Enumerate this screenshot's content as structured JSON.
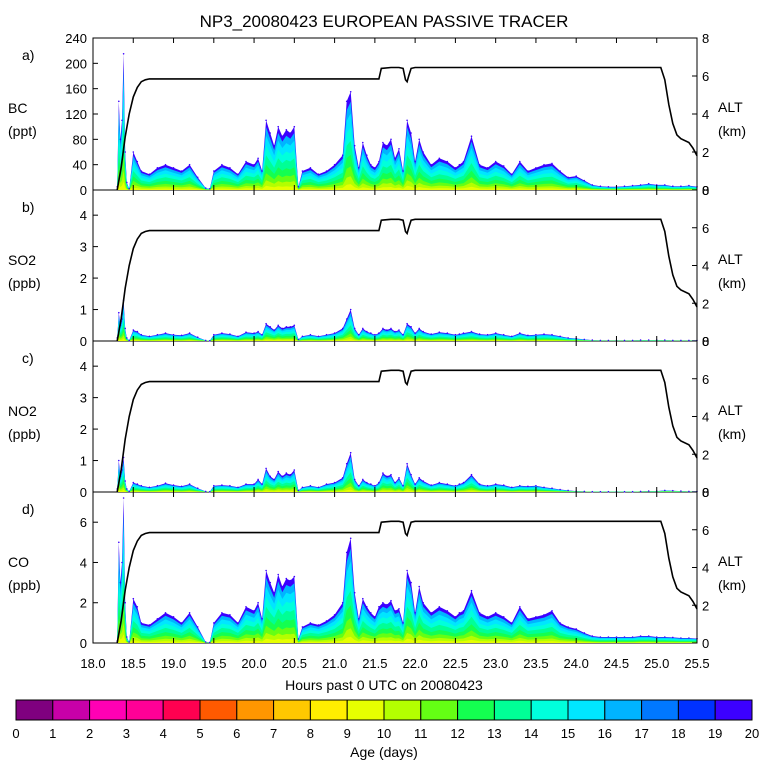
{
  "chart_data": {
    "type": "area",
    "title": "NP3_20080423 EUROPEAN PASSIVE TRACER",
    "xlabel": "Hours past 0 UTC on 20080423",
    "xlim": [
      18.0,
      25.5
    ],
    "xticks": [
      "18.0",
      "18.5",
      "19.0",
      "19.5",
      "20.0",
      "20.5",
      "21.0",
      "21.5",
      "22.0",
      "22.5",
      "23.0",
      "23.5",
      "24.0",
      "24.5",
      "25.0",
      "25.5"
    ],
    "x": [
      18.3,
      18.32,
      18.34,
      18.36,
      18.38,
      18.4,
      18.42,
      18.45,
      18.5,
      18.55,
      18.6,
      18.7,
      18.8,
      18.9,
      19.0,
      19.1,
      19.2,
      19.3,
      19.4,
      19.45,
      19.5,
      19.6,
      19.7,
      19.8,
      19.9,
      20.0,
      20.05,
      20.1,
      20.15,
      20.2,
      20.25,
      20.3,
      20.35,
      20.4,
      20.45,
      20.5,
      20.55,
      20.6,
      20.7,
      20.8,
      20.9,
      21.0,
      21.1,
      21.15,
      21.2,
      21.25,
      21.3,
      21.35,
      21.4,
      21.45,
      21.5,
      21.55,
      21.6,
      21.65,
      21.7,
      21.75,
      21.8,
      21.85,
      21.9,
      21.95,
      22.0,
      22.05,
      22.1,
      22.2,
      22.3,
      22.4,
      22.5,
      22.55,
      22.6,
      22.7,
      22.8,
      22.9,
      23.0,
      23.1,
      23.2,
      23.3,
      23.4,
      23.5,
      23.6,
      23.7,
      23.8,
      23.9,
      24.0,
      24.1,
      24.2,
      24.3,
      24.4,
      24.5,
      24.6,
      24.7,
      24.8,
      24.9,
      25.0,
      25.1,
      25.2,
      25.3,
      25.4,
      25.5
    ],
    "panels": [
      {
        "label": "a)",
        "species": "BC",
        "unit": "(ppt)",
        "ylim": [
          0,
          240
        ],
        "yticks": [
          "0",
          "40",
          "80",
          "120",
          "160",
          "200",
          "240"
        ],
        "values": [
          5,
          140,
          80,
          110,
          215,
          60,
          12,
          2,
          60,
          45,
          30,
          25,
          35,
          40,
          35,
          30,
          40,
          20,
          3,
          2,
          30,
          40,
          35,
          25,
          45,
          40,
          50,
          30,
          110,
          90,
          70,
          100,
          85,
          95,
          90,
          100,
          5,
          30,
          35,
          25,
          30,
          40,
          55,
          140,
          155,
          70,
          35,
          75,
          55,
          40,
          35,
          45,
          75,
          70,
          80,
          50,
          65,
          30,
          110,
          90,
          45,
          80,
          60,
          40,
          50,
          45,
          35,
          40,
          45,
          85,
          40,
          35,
          45,
          38,
          25,
          45,
          30,
          35,
          40,
          42,
          30,
          20,
          22,
          15,
          8,
          6,
          5,
          5,
          6,
          7,
          8,
          10,
          8,
          8,
          6,
          6,
          7,
          5
        ]
      },
      {
        "label": "b)",
        "species": "SO2",
        "unit": "(ppb)",
        "ylim": [
          0,
          4.8
        ],
        "yticks": [
          "0",
          "1",
          "2",
          "3",
          "4"
        ],
        "values": [
          0.1,
          0.9,
          0.5,
          0.7,
          1.3,
          0.4,
          0.1,
          0.02,
          0.35,
          0.3,
          0.2,
          0.15,
          0.2,
          0.25,
          0.2,
          0.18,
          0.25,
          0.12,
          0.02,
          0.01,
          0.2,
          0.25,
          0.22,
          0.15,
          0.28,
          0.25,
          0.3,
          0.2,
          0.55,
          0.45,
          0.35,
          0.5,
          0.4,
          0.45,
          0.45,
          0.5,
          0.05,
          0.15,
          0.2,
          0.15,
          0.2,
          0.25,
          0.4,
          0.7,
          1.0,
          0.4,
          0.2,
          0.4,
          0.3,
          0.25,
          0.2,
          0.25,
          0.4,
          0.35,
          0.4,
          0.3,
          0.35,
          0.2,
          0.55,
          0.45,
          0.25,
          0.4,
          0.3,
          0.22,
          0.28,
          0.25,
          0.2,
          0.22,
          0.25,
          0.3,
          0.22,
          0.2,
          0.25,
          0.2,
          0.15,
          0.25,
          0.18,
          0.2,
          0.22,
          0.2,
          0.15,
          0.1,
          0.08,
          0.05,
          0.03,
          0.02,
          0.02,
          0.02,
          0.02,
          0.02,
          0.03,
          0.03,
          0.03,
          0.03,
          0.02,
          0.02,
          0.02,
          0.02
        ]
      },
      {
        "label": "c)",
        "species": "NO2",
        "unit": "(ppb)",
        "ylim": [
          0,
          4.8
        ],
        "yticks": [
          "0",
          "1",
          "2",
          "3",
          "4"
        ],
        "values": [
          0.1,
          1.0,
          0.5,
          0.7,
          1.1,
          0.35,
          0.1,
          0.02,
          0.3,
          0.25,
          0.2,
          0.15,
          0.2,
          0.28,
          0.22,
          0.18,
          0.25,
          0.12,
          0.02,
          0.01,
          0.2,
          0.22,
          0.2,
          0.15,
          0.25,
          0.25,
          0.4,
          0.25,
          0.75,
          0.5,
          0.4,
          0.65,
          0.5,
          0.6,
          0.55,
          0.7,
          0.05,
          0.15,
          0.2,
          0.15,
          0.25,
          0.3,
          0.45,
          0.9,
          1.25,
          0.4,
          0.2,
          0.4,
          0.3,
          0.25,
          0.2,
          0.3,
          0.6,
          0.5,
          0.55,
          0.3,
          0.45,
          0.2,
          0.9,
          0.55,
          0.25,
          0.45,
          0.35,
          0.22,
          0.3,
          0.25,
          0.2,
          0.25,
          0.3,
          0.55,
          0.25,
          0.2,
          0.25,
          0.22,
          0.15,
          0.2,
          0.18,
          0.2,
          0.15,
          0.12,
          0.08,
          0.05,
          0.03,
          0.02,
          0.01,
          0.01,
          0.01,
          0.01,
          0.01,
          0.01,
          0.02,
          0.03,
          0.03,
          0.05,
          0.04,
          0.03,
          0.02,
          0.02
        ]
      },
      {
        "label": "d)",
        "species": "CO",
        "unit": "(ppb)",
        "ylim": [
          0,
          7.5
        ],
        "yticks": [
          "0",
          "2",
          "4",
          "6"
        ],
        "values": [
          0.1,
          5.0,
          3.0,
          4.0,
          7.2,
          2.0,
          0.3,
          0.05,
          2.2,
          1.8,
          1.0,
          0.9,
          1.2,
          1.5,
          1.3,
          1.0,
          1.5,
          0.8,
          0.05,
          0.03,
          1.0,
          1.5,
          1.4,
          1.0,
          1.8,
          1.6,
          2.0,
          1.2,
          3.6,
          3.0,
          2.5,
          3.4,
          2.8,
          3.2,
          3.1,
          3.3,
          0.2,
          0.8,
          1.0,
          0.9,
          1.1,
          1.4,
          2.0,
          4.5,
          5.2,
          2.5,
          1.2,
          2.2,
          1.8,
          1.5,
          1.3,
          1.8,
          2.0,
          1.9,
          2.1,
          1.6,
          1.7,
          1.0,
          3.6,
          3.0,
          1.5,
          2.8,
          2.0,
          1.5,
          1.8,
          1.6,
          1.3,
          1.5,
          1.6,
          2.6,
          1.5,
          1.3,
          1.5,
          1.3,
          1.0,
          1.8,
          1.2,
          1.3,
          1.4,
          1.6,
          1.0,
          0.8,
          0.7,
          0.5,
          0.35,
          0.3,
          0.3,
          0.3,
          0.3,
          0.3,
          0.35,
          0.35,
          0.3,
          0.3,
          0.28,
          0.25,
          0.25,
          0.22
        ]
      }
    ],
    "altitude": {
      "label": "ALT",
      "unit": "(km)",
      "ylim": [
        0,
        8
      ],
      "yticks": [
        "0",
        "2",
        "4",
        "6",
        "8"
      ],
      "x": [
        18.3,
        18.35,
        18.4,
        18.45,
        18.5,
        18.55,
        18.6,
        18.65,
        18.7,
        21.55,
        21.58,
        21.7,
        21.8,
        21.85,
        21.88,
        21.9,
        21.92,
        21.95,
        22.0,
        25.05,
        25.1,
        25.15,
        25.2,
        25.25,
        25.3,
        25.4,
        25.45,
        25.5
      ],
      "values": [
        0,
        1.2,
        2.8,
        4.0,
        4.9,
        5.4,
        5.7,
        5.8,
        5.85,
        5.85,
        6.4,
        6.45,
        6.45,
        6.4,
        5.8,
        5.7,
        6.0,
        6.4,
        6.45,
        6.45,
        5.8,
        4.5,
        3.5,
        2.9,
        2.7,
        2.5,
        2.2,
        1.8
      ]
    },
    "colorbar": {
      "label": "Age (days)",
      "ticks": [
        "0",
        "1",
        "2",
        "3",
        "4",
        "5",
        "6",
        "7",
        "8",
        "9",
        "10",
        "11",
        "12",
        "13",
        "14",
        "15",
        "16",
        "17",
        "18",
        "19",
        "20"
      ],
      "colors": [
        "#7f007f",
        "#c800a8",
        "#ff00b4",
        "#ff0096",
        "#ff0050",
        "#ff5a00",
        "#ff9600",
        "#ffc800",
        "#ffee00",
        "#e6ff00",
        "#b4ff00",
        "#64ff14",
        "#14ff50",
        "#00ff96",
        "#00ffdc",
        "#00e6ff",
        "#00b4ff",
        "#0078ff",
        "#0032ff",
        "#3c00ff"
      ]
    }
  }
}
